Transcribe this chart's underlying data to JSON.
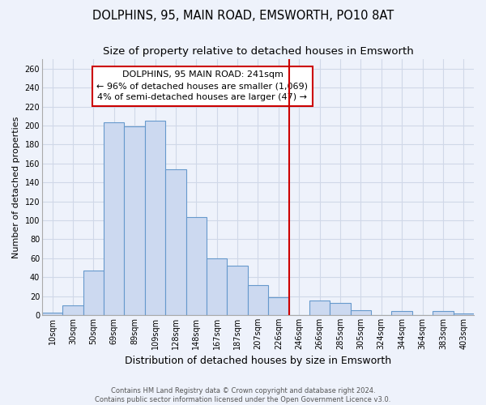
{
  "title": "DOLPHINS, 95, MAIN ROAD, EMSWORTH, PO10 8AT",
  "subtitle": "Size of property relative to detached houses in Emsworth",
  "xlabel": "Distribution of detached houses by size in Emsworth",
  "ylabel": "Number of detached properties",
  "categories": [
    "10sqm",
    "30sqm",
    "50sqm",
    "69sqm",
    "89sqm",
    "109sqm",
    "128sqm",
    "148sqm",
    "167sqm",
    "187sqm",
    "207sqm",
    "226sqm",
    "246sqm",
    "266sqm",
    "285sqm",
    "305sqm",
    "324sqm",
    "344sqm",
    "364sqm",
    "383sqm",
    "403sqm"
  ],
  "values": [
    3,
    10,
    47,
    203,
    199,
    205,
    154,
    103,
    60,
    52,
    32,
    19,
    0,
    15,
    13,
    5,
    0,
    4,
    0,
    4,
    2
  ],
  "bar_color": "#ccd9f0",
  "bar_edge_color": "#6699cc",
  "vline_color": "#cc0000",
  "annotation_title": "DOLPHINS, 95 MAIN ROAD: 241sqm",
  "annotation_line1": "← 96% of detached houses are smaller (1,069)",
  "annotation_line2": "4% of semi-detached houses are larger (47) →",
  "annotation_box_color": "#ffffff",
  "annotation_box_edge": "#cc0000",
  "ylim": [
    0,
    270
  ],
  "yticks": [
    0,
    20,
    40,
    60,
    80,
    100,
    120,
    140,
    160,
    180,
    200,
    220,
    240,
    260
  ],
  "footer_line1": "Contains HM Land Registry data © Crown copyright and database right 2024.",
  "footer_line2": "Contains public sector information licensed under the Open Government Licence v3.0.",
  "bg_color": "#eef2fb",
  "grid_color": "#d0d8e8",
  "title_fontsize": 10.5,
  "subtitle_fontsize": 9.5,
  "xlabel_fontsize": 9,
  "ylabel_fontsize": 8,
  "tick_fontsize": 7,
  "footer_fontsize": 6,
  "annot_fontsize": 8,
  "annot_title_fontsize": 8.5
}
